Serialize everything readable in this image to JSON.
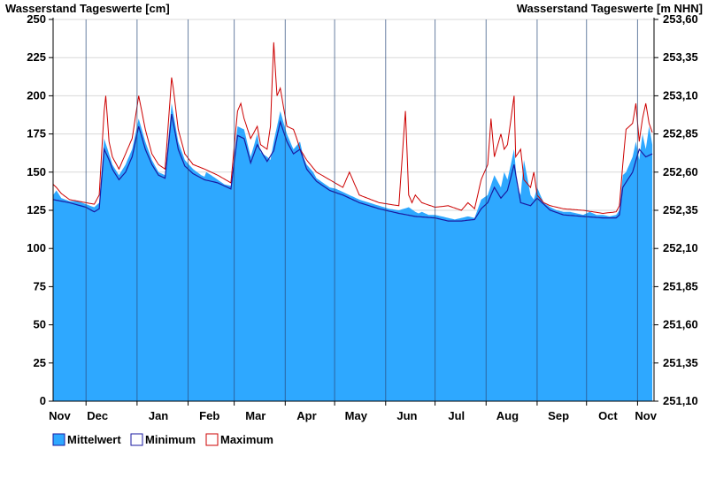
{
  "chart_data": {
    "type": "area",
    "ylabel_left": "Wasserstand Tageswerte [cm]",
    "ylabel_right": "Wasserstand Tageswerte [m NHN]",
    "ylim_left": [
      0,
      250
    ],
    "ylim_right": [
      251.1,
      253.6
    ],
    "yticks_left": [
      "0",
      "25",
      "50",
      "75",
      "100",
      "125",
      "150",
      "175",
      "200",
      "225",
      "250"
    ],
    "yticks_right": [
      "251,10",
      "251,35",
      "251,60",
      "251,85",
      "252,10",
      "252,35",
      "252,60",
      "252,85",
      "253,10",
      "253,35",
      "253,60"
    ],
    "x_months": [
      "Nov",
      "Dec",
      "Jan",
      "Feb",
      "Mar",
      "Apr",
      "May",
      "Jun",
      "Jul",
      "Aug",
      "Sep",
      "Oct",
      "Nov"
    ],
    "grid": "horizontal",
    "legend_position": "bottom-left",
    "colors": {
      "mean_fill": "#2ea8ff",
      "min_line": "#1a1aa0",
      "max_line": "#cc0000"
    },
    "series": [
      {
        "name": "Mittelwert",
        "x_day": [
          0,
          2,
          5,
          10,
          15,
          20,
          25,
          28,
          31,
          34,
          36,
          40,
          44,
          48,
          52,
          56,
          60,
          64,
          68,
          72,
          76,
          80,
          85,
          90,
          92,
          93,
          96,
          100,
          104,
          108,
          112,
          116,
          120,
          124,
          126,
          130,
          132,
          134,
          138,
          142,
          146,
          150,
          152,
          154,
          158,
          160,
          164,
          168,
          172,
          176,
          180,
          186,
          192,
          198,
          204,
          210,
          216,
          220,
          222,
          224,
          228,
          232,
          236,
          240,
          244,
          248,
          252,
          256,
          260,
          264,
          268,
          272,
          274,
          276,
          278,
          280,
          282,
          284,
          286,
          290,
          292,
          294,
          298,
          302,
          306,
          310,
          314,
          318,
          322,
          326,
          330,
          334,
          338,
          342,
          344,
          346,
          348,
          352,
          354,
          356,
          358,
          360,
          362,
          364
        ],
        "y": [
          135,
          138,
          133,
          131,
          131,
          129,
          127,
          130,
          172,
          162,
          155,
          148,
          155,
          165,
          185,
          170,
          158,
          150,
          148,
          195,
          170,
          158,
          152,
          148,
          147,
          150,
          148,
          145,
          142,
          141,
          180,
          178,
          160,
          175,
          163,
          160,
          158,
          170,
          190,
          175,
          165,
          170,
          160,
          155,
          150,
          146,
          143,
          140,
          139,
          137,
          135,
          132,
          130,
          128,
          126,
          125,
          127,
          124,
          123,
          124,
          122,
          122,
          121,
          120,
          119,
          120,
          121,
          120,
          132,
          135,
          148,
          140,
          150,
          145,
          155,
          165,
          140,
          135,
          158,
          135,
          132,
          140,
          130,
          127,
          125,
          124,
          124,
          123,
          122,
          124,
          122,
          122,
          121,
          122,
          125,
          148,
          150,
          160,
          170,
          158,
          175,
          165,
          180,
          168
        ]
      },
      {
        "name": "Minimum",
        "x_day": [
          0,
          5,
          10,
          20,
          25,
          28,
          31,
          34,
          36,
          40,
          44,
          48,
          52,
          56,
          60,
          64,
          68,
          72,
          76,
          80,
          85,
          92,
          100,
          108,
          112,
          116,
          120,
          124,
          130,
          134,
          138,
          142,
          146,
          150,
          154,
          160,
          168,
          176,
          186,
          198,
          210,
          220,
          232,
          240,
          248,
          256,
          260,
          264,
          268,
          272,
          276,
          280,
          284,
          290,
          294,
          302,
          310,
          322,
          334,
          342,
          344,
          346,
          352,
          356,
          360,
          364
        ],
        "y": [
          132,
          131,
          130,
          127,
          124,
          126,
          165,
          158,
          152,
          145,
          150,
          160,
          180,
          165,
          155,
          148,
          146,
          188,
          165,
          154,
          149,
          145,
          143,
          139,
          174,
          172,
          156,
          168,
          157,
          164,
          183,
          170,
          162,
          165,
          152,
          144,
          138,
          135,
          130,
          126,
          123,
          121,
          120,
          118,
          118,
          119,
          126,
          130,
          140,
          133,
          138,
          155,
          130,
          128,
          133,
          125,
          122,
          121,
          120,
          120,
          122,
          140,
          150,
          165,
          160,
          162
        ]
      },
      {
        "name": "Maximum",
        "x_day": [
          0,
          2,
          5,
          10,
          20,
          25,
          28,
          31,
          32,
          34,
          36,
          40,
          44,
          48,
          52,
          56,
          60,
          64,
          68,
          72,
          73,
          76,
          80,
          85,
          92,
          100,
          108,
          112,
          114,
          116,
          120,
          124,
          126,
          130,
          132,
          134,
          136,
          138,
          142,
          146,
          148,
          150,
          154,
          160,
          168,
          176,
          180,
          186,
          198,
          210,
          214,
          216,
          218,
          220,
          224,
          232,
          240,
          248,
          252,
          256,
          260,
          264,
          266,
          268,
          272,
          274,
          276,
          280,
          281,
          284,
          286,
          290,
          292,
          294,
          298,
          302,
          310,
          322,
          334,
          342,
          344,
          346,
          348,
          352,
          354,
          356,
          358,
          360,
          362,
          364
        ],
        "y": [
          142,
          140,
          136,
          132,
          130,
          129,
          135,
          190,
          200,
          170,
          160,
          152,
          162,
          172,
          200,
          178,
          162,
          155,
          152,
          212,
          205,
          178,
          162,
          155,
          152,
          148,
          143,
          190,
          195,
          185,
          172,
          180,
          168,
          165,
          180,
          235,
          200,
          205,
          180,
          178,
          172,
          165,
          158,
          150,
          145,
          140,
          150,
          135,
          130,
          128,
          190,
          135,
          130,
          135,
          130,
          127,
          128,
          125,
          130,
          126,
          145,
          155,
          185,
          160,
          175,
          165,
          168,
          200,
          160,
          165,
          145,
          140,
          150,
          135,
          130,
          128,
          126,
          125,
          123,
          124,
          128,
          155,
          178,
          182,
          195,
          170,
          185,
          195,
          182,
          176
        ]
      }
    ]
  },
  "legend": {
    "mean_label": "Mittelwert",
    "min_label": "Minimum",
    "max_label": "Maximum"
  }
}
